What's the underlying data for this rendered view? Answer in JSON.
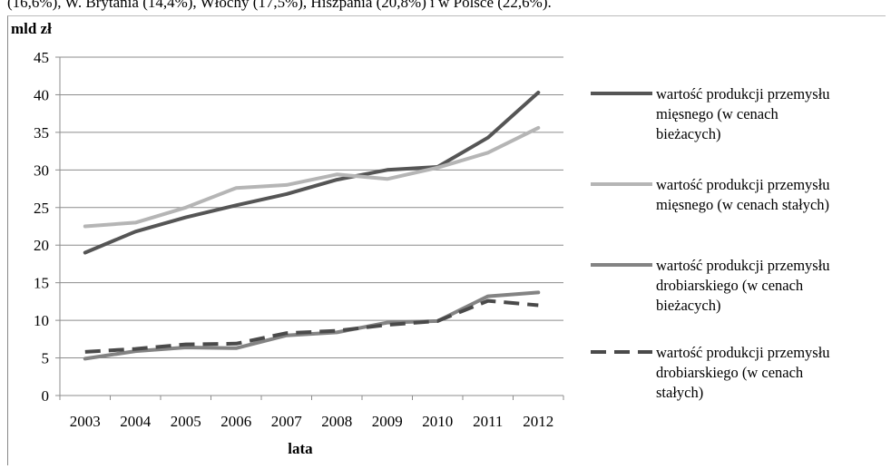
{
  "caption_fragment": "(16,6%), W. Brytania (14,4%), Włochy (17,5%), Hiszpania (20,8%) i w Polsce (22,6%).",
  "chart_data": {
    "type": "line",
    "ylabel": "mld zł",
    "xlabel": "lata",
    "ylim": [
      0,
      45
    ],
    "yticks": [
      0,
      5,
      10,
      15,
      20,
      25,
      30,
      35,
      40,
      45
    ],
    "x": [
      "2003",
      "2004",
      "2005",
      "2006",
      "2007",
      "2008",
      "2009",
      "2010",
      "2011",
      "2012"
    ],
    "grid": true,
    "legend_position": "right",
    "series": [
      {
        "name": "wartość produkcji przemysłu mięsnego (w cenach bieżących)",
        "legend_lines": [
          "wartość produkcji przemysłu",
          "mięsnego  (w cenach",
          "bieżacych)"
        ],
        "color": "#555555",
        "dashed": false,
        "values": [
          19.0,
          21.8,
          23.7,
          25.3,
          26.8,
          28.7,
          30.0,
          30.4,
          34.3,
          40.3
        ]
      },
      {
        "name": "wartość produkcji przemysłu mięsnego (w cenach stałych)",
        "legend_lines": [
          "wartość produkcji przemysłu",
          "mięsnego  (w cenach stałych)"
        ],
        "color": "#b5b5b5",
        "dashed": false,
        "values": [
          22.5,
          23.0,
          25.0,
          27.6,
          28.0,
          29.4,
          28.8,
          30.3,
          32.3,
          35.6
        ]
      },
      {
        "name": "wartość produkcji przemysłu drobiarskiego (w cenach bieżących)",
        "legend_lines": [
          "wartość produkcji przemysłu",
          "drobiarskiego  (w cenach",
          "bieżacych)"
        ],
        "color": "#838383",
        "dashed": false,
        "values": [
          4.9,
          5.9,
          6.4,
          6.3,
          8.0,
          8.4,
          9.7,
          9.9,
          13.2,
          13.7
        ]
      },
      {
        "name": "wartość produkcji przemysłu drobiarskiego (w cenach stałych)",
        "legend_lines": [
          "wartość produkcji przemysłu",
          "drobiarskiego  (w cenach",
          "stałych)"
        ],
        "color": "#4a4a4a",
        "dashed": true,
        "values": [
          5.8,
          6.2,
          6.8,
          6.9,
          8.3,
          8.6,
          9.4,
          9.9,
          12.6,
          12.0
        ]
      }
    ]
  }
}
